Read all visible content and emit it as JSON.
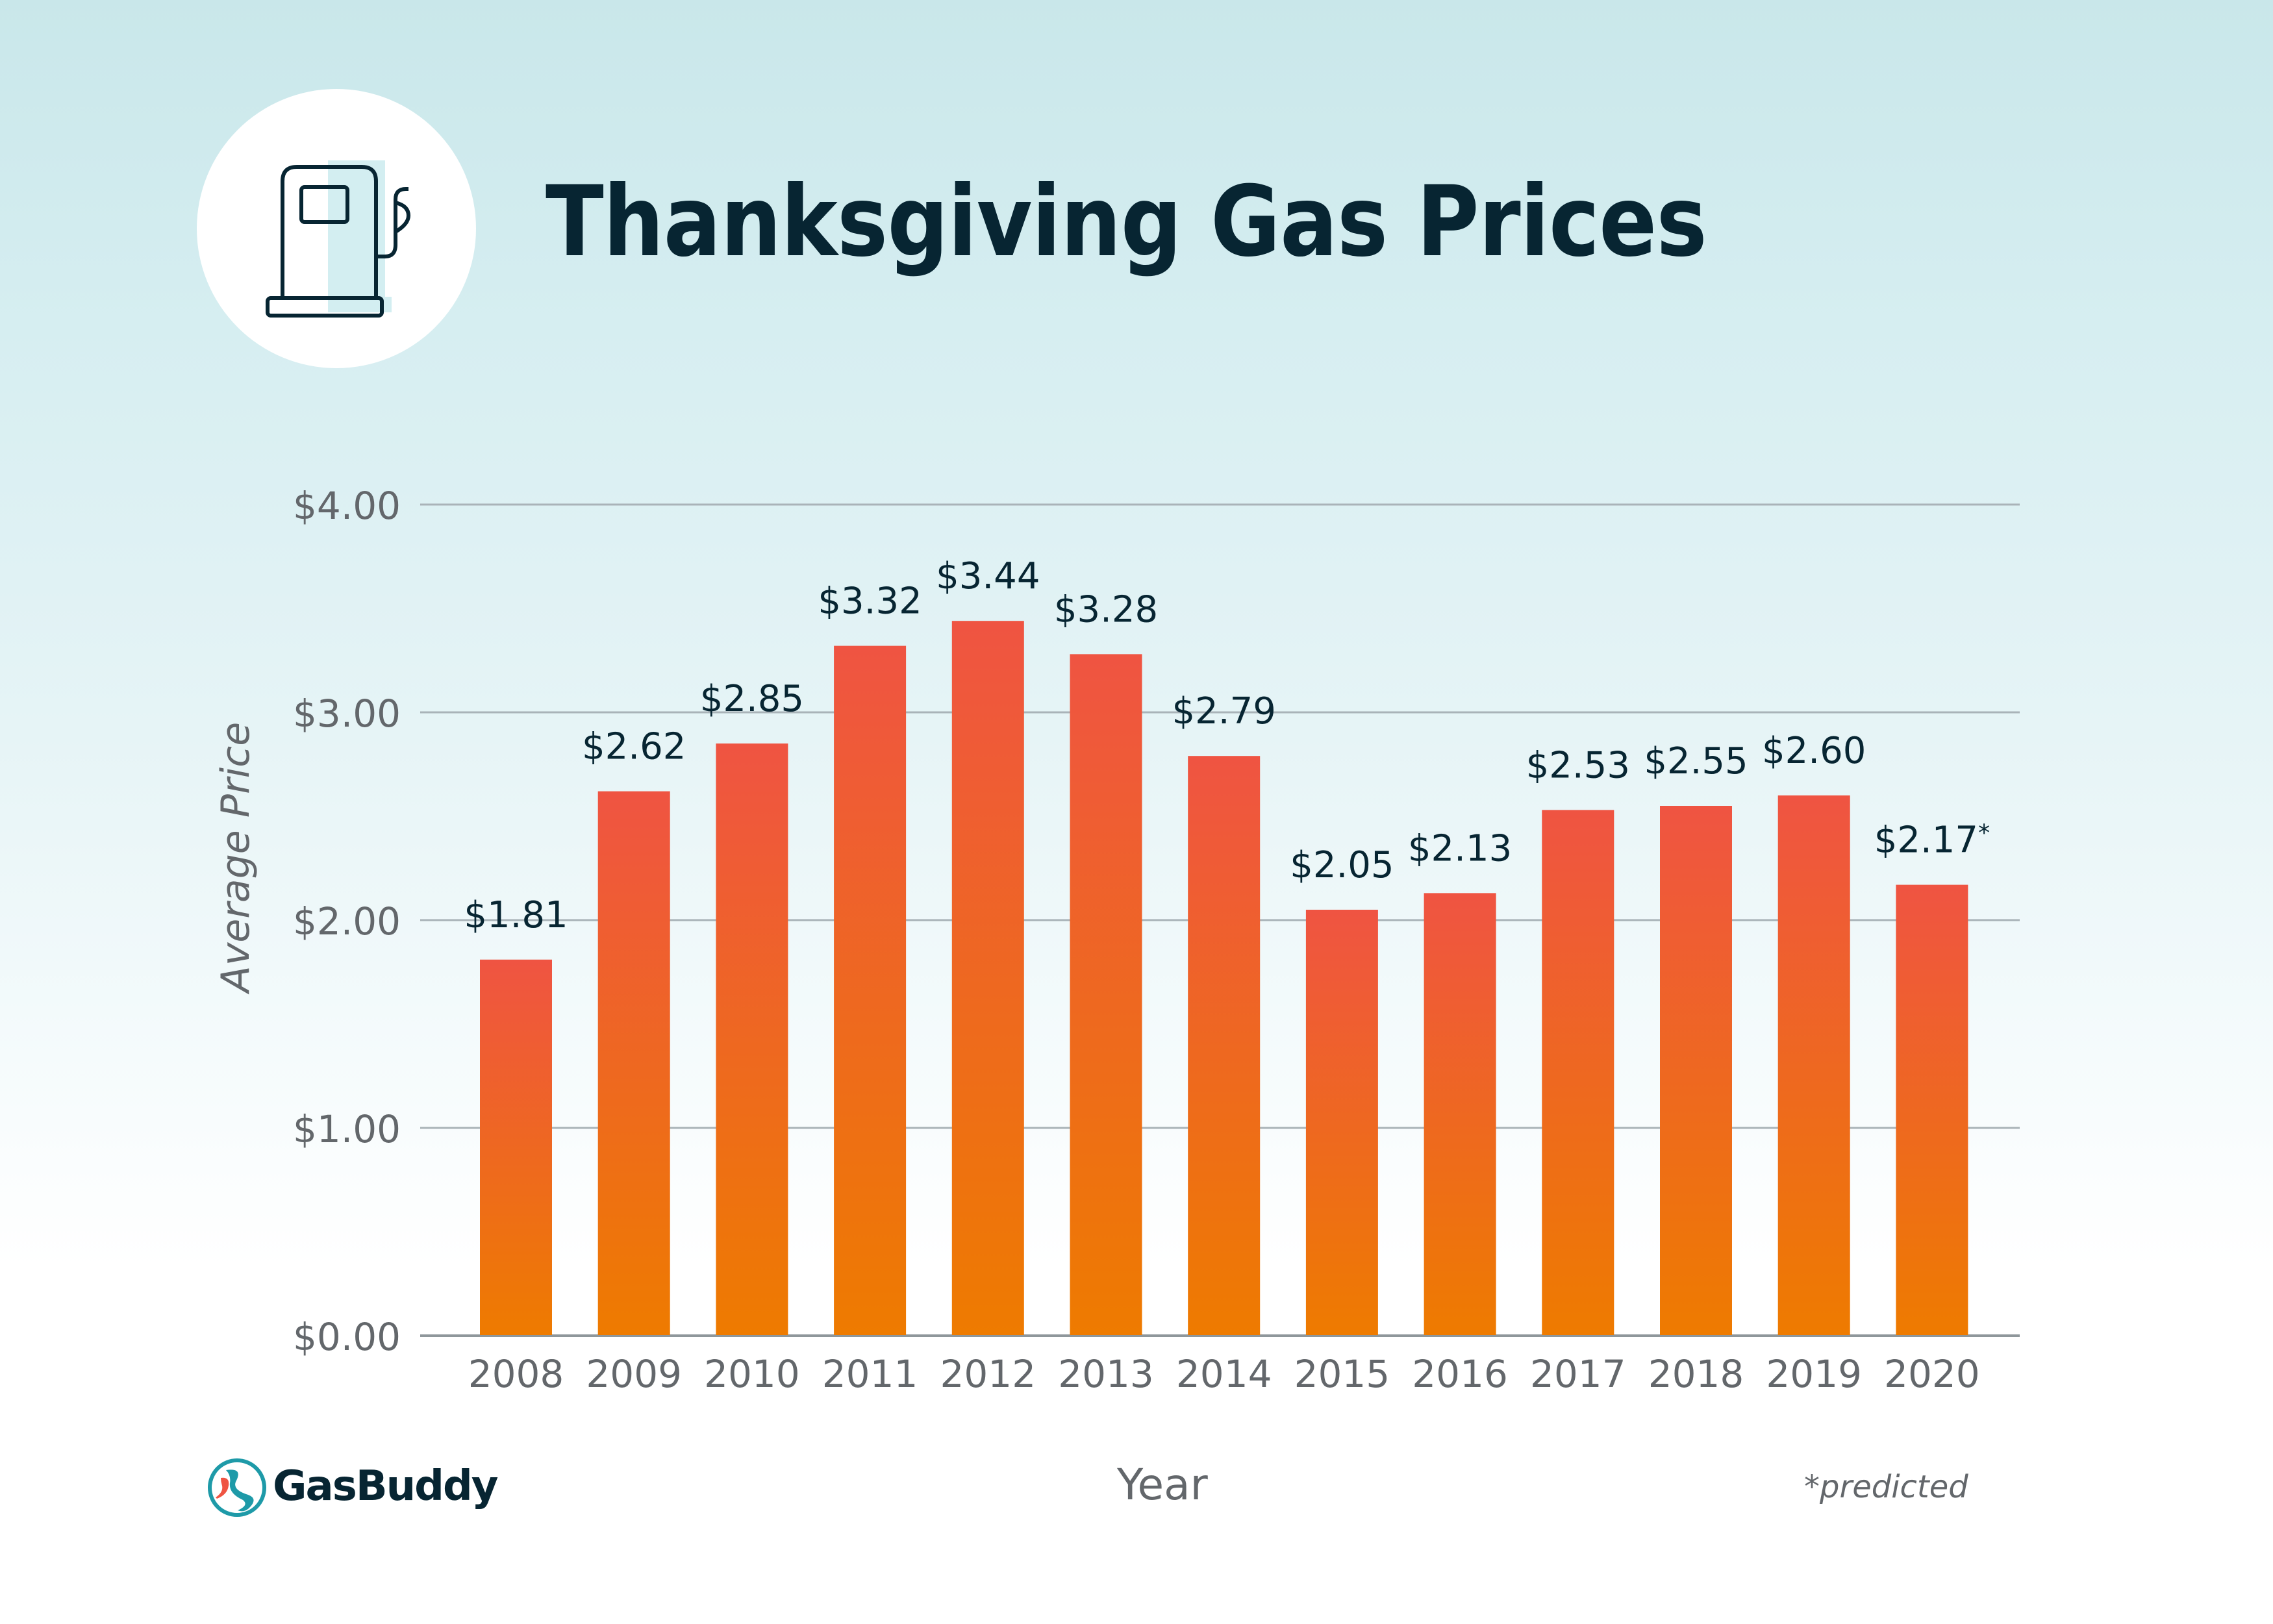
{
  "header": {
    "title": "Thanksgiving Gas Prices",
    "icon": "gas-pump-icon"
  },
  "brand": {
    "name": "GasBuddy",
    "logo_icon": "gasbuddy-road-logo-icon"
  },
  "footnote": "*predicted",
  "colors": {
    "title": "#072532",
    "bar_top": "#ef5442",
    "bar_bottom": "#ee7b00",
    "axis_text": "#63676b",
    "data_label": "#072532",
    "grid": "#a9b3b8",
    "brand_teal": "#1e9aa8",
    "brand_red": "#ef5442"
  },
  "chart_data": {
    "type": "bar",
    "title": "Thanksgiving Gas Prices",
    "xlabel": "Year",
    "ylabel": "Average Price",
    "categories": [
      "2008",
      "2009",
      "2010",
      "2011",
      "2012",
      "2013",
      "2014",
      "2015",
      "2016",
      "2017",
      "2018",
      "2019",
      "2020"
    ],
    "values": [
      1.81,
      2.62,
      2.85,
      3.32,
      3.44,
      3.28,
      2.79,
      2.05,
      2.13,
      2.53,
      2.55,
      2.6,
      2.17
    ],
    "data_labels": [
      "$1.81",
      "$2.62",
      "$2.85",
      "$3.32",
      "$3.44",
      "$3.28",
      "$2.79",
      "$2.05",
      "$2.13",
      "$2.53",
      "$2.55",
      "$2.60",
      "$2.17"
    ],
    "data_label_suffixes": [
      "",
      "",
      "",
      "",
      "",
      "",
      "",
      "",
      "",
      "",
      "",
      "",
      "*"
    ],
    "ylim": [
      0,
      4
    ],
    "yticks": [
      0,
      1,
      2,
      3,
      4
    ],
    "ytick_labels": [
      "$0.00",
      "$1.00",
      "$2.00",
      "$3.00",
      "$4.00"
    ],
    "grid": true,
    "legend": "none",
    "annotations": [
      "*predicted"
    ]
  }
}
